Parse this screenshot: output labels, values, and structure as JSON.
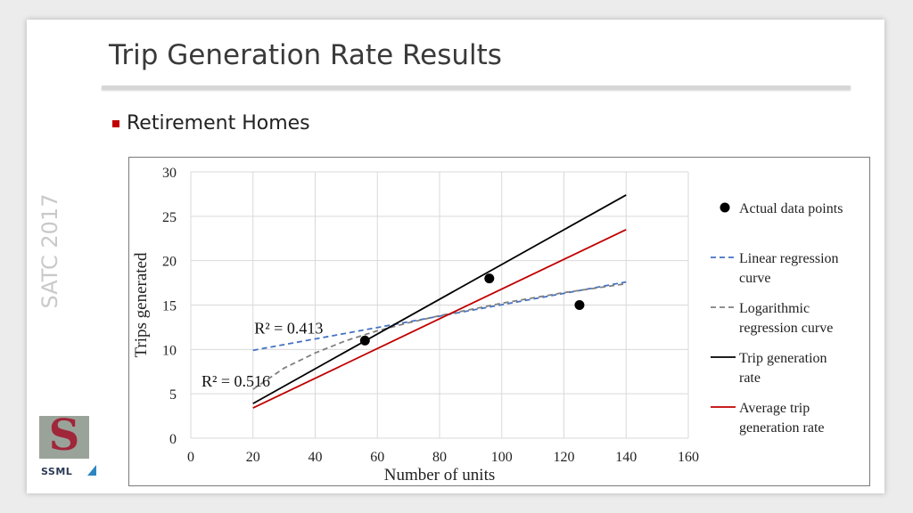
{
  "slide": {
    "title": "Trip Generation Rate Results",
    "bullet": "Retirement Homes",
    "side_label": "SATC 2017",
    "logo_text": "SSML"
  },
  "colors": {
    "bullet": "#c00000",
    "linear": "#4472c4",
    "logarithmic": "#808080",
    "trip_rate": "#000000",
    "average_rate": "#c00000"
  },
  "chart_data": {
    "type": "scatter",
    "xlabel": "Number of units",
    "ylabel": "Trips generated",
    "xlim": [
      0,
      160
    ],
    "ylim": [
      0,
      30
    ],
    "xticks": [
      0,
      20,
      40,
      60,
      80,
      100,
      120,
      140,
      160
    ],
    "yticks": [
      0,
      5,
      10,
      15,
      20,
      25,
      30
    ],
    "grid": true,
    "legend_position": "right",
    "points": [
      {
        "x": 56,
        "y": 11
      },
      {
        "x": 96,
        "y": 18
      },
      {
        "x": 125,
        "y": 15
      }
    ],
    "series": [
      {
        "name": "Actual data points",
        "kind": "points"
      },
      {
        "name": "Linear regression curve",
        "kind": "line",
        "style": "dashed",
        "color": "#4472c4",
        "x": [
          20,
          140
        ],
        "y": [
          9.9,
          17.6
        ]
      },
      {
        "name": "Logarithmic regression curve",
        "kind": "line",
        "style": "dashed",
        "color": "#808080",
        "x": [
          20,
          30,
          40,
          50,
          60,
          70,
          80,
          90,
          100,
          110,
          120,
          130,
          140
        ],
        "y": [
          5.5,
          7.9,
          9.6,
          11.0,
          12.1,
          13.0,
          13.8,
          14.5,
          15.2,
          15.8,
          16.4,
          16.9,
          17.4
        ]
      },
      {
        "name": "Trip generation rate",
        "kind": "line",
        "style": "solid",
        "color": "#000000",
        "x": [
          20,
          140
        ],
        "y": [
          3.9,
          27.4
        ]
      },
      {
        "name": "Average trip generation rate",
        "kind": "line",
        "style": "solid",
        "color": "#c00000",
        "x": [
          20,
          140
        ],
        "y": [
          3.4,
          23.5
        ]
      }
    ],
    "annotations": [
      {
        "text": "R² = 0.413",
        "x": 17,
        "y": 12.4
      },
      {
        "text": "R² = 0.516",
        "x": 0,
        "y": 6.4
      }
    ]
  }
}
